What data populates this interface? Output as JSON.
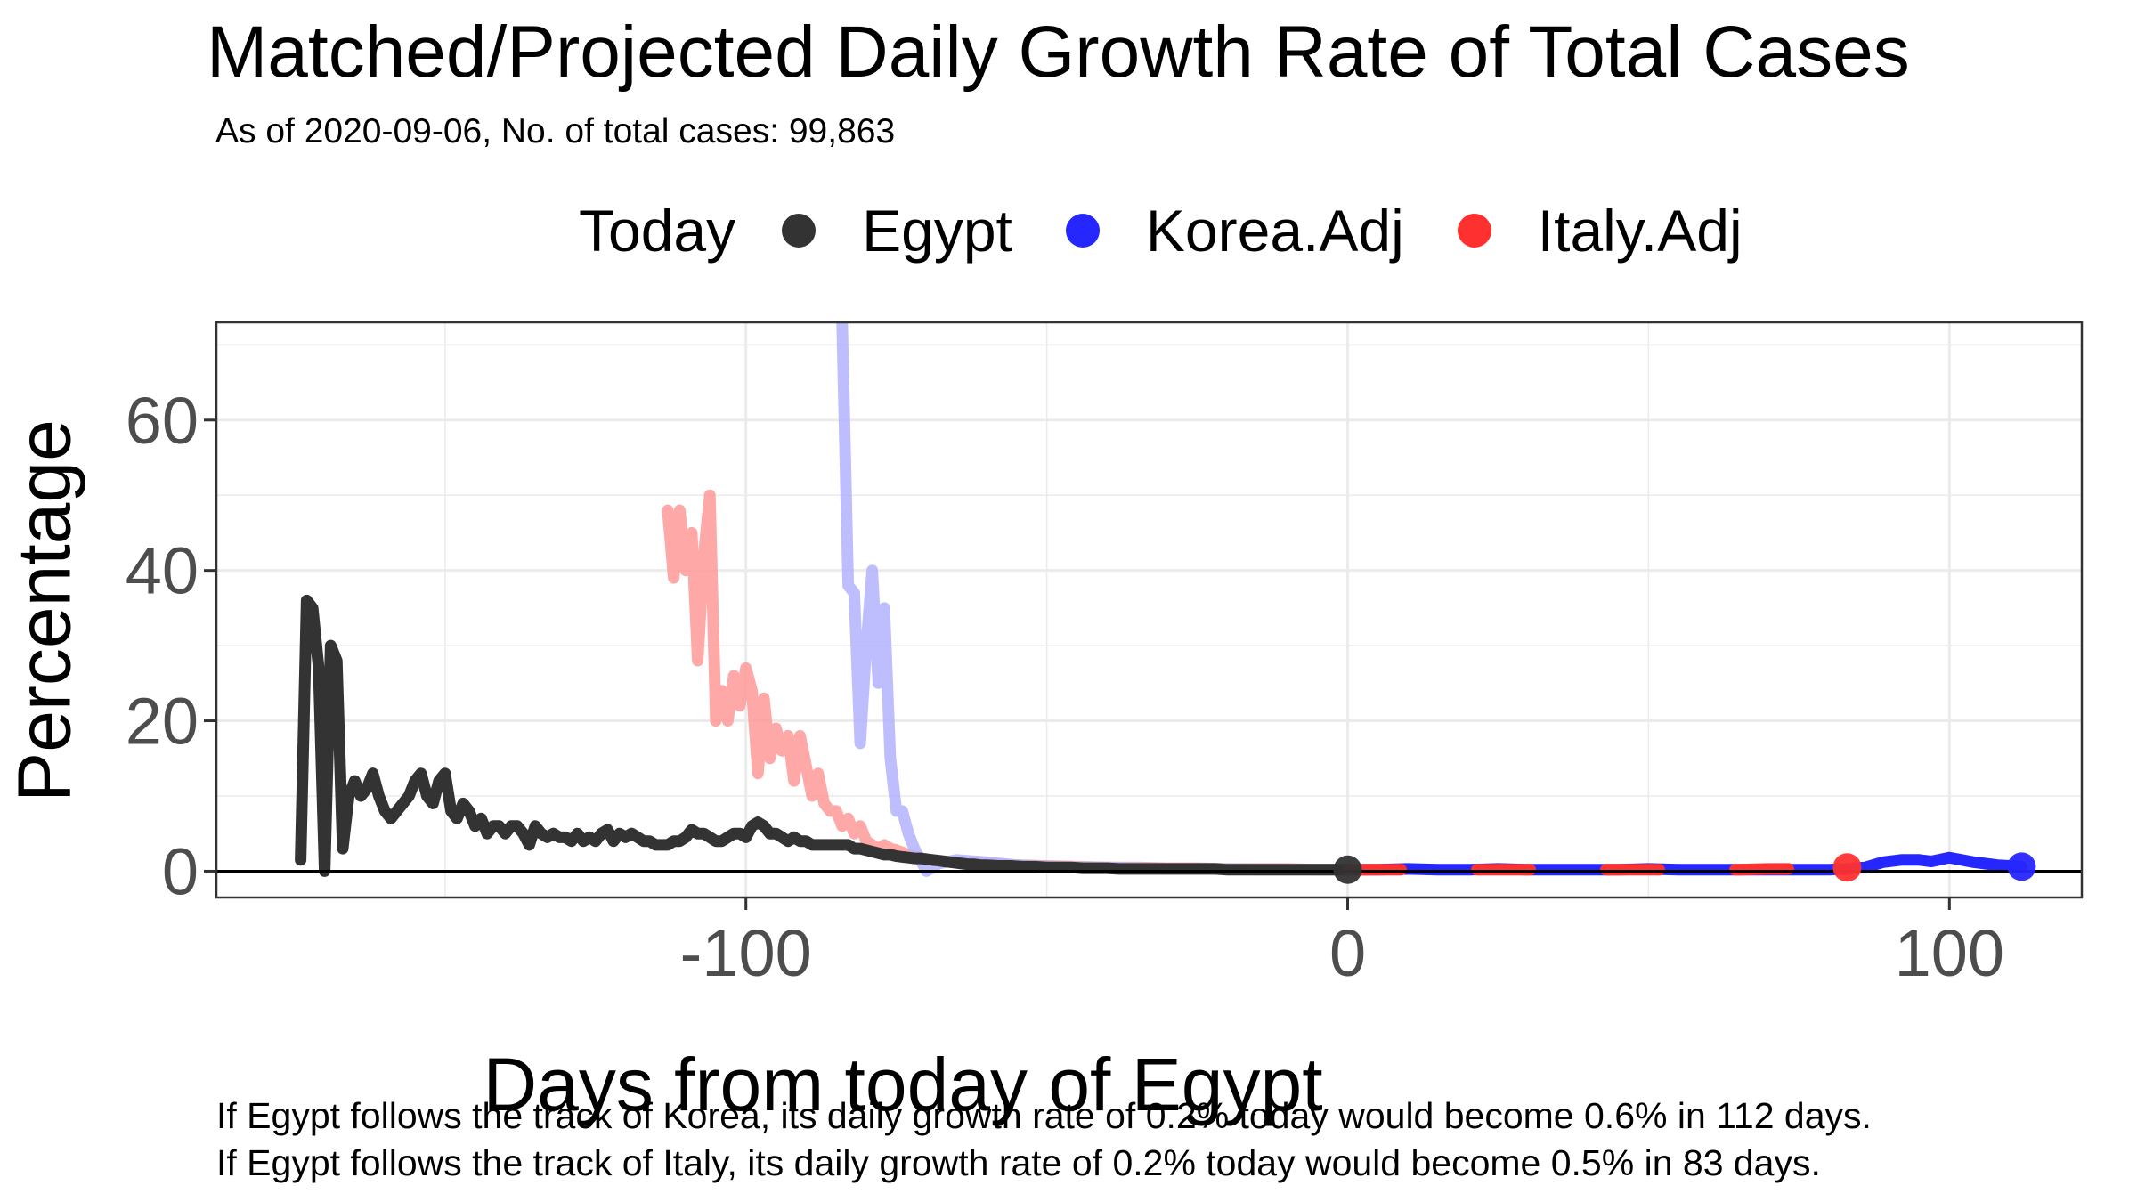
{
  "title": "Matched/Projected Daily Growth Rate of Total Cases",
  "subtitle": "As of 2020-09-06, No. of total cases: 99,863",
  "legend": {
    "title": "Today",
    "items": [
      {
        "label": "Egypt",
        "color": "#333333"
      },
      {
        "label": "Korea.Adj",
        "color": "#2626ff"
      },
      {
        "label": "Italy.Adj",
        "color": "#ff3030"
      }
    ]
  },
  "notes": [
    "If Egypt follows the track of Korea, its daily growth rate of 0.2% today would become 0.6% in 112 days.",
    "If Egypt follows the track of Italy, its daily growth rate of 0.2% today would become 0.5% in 83 days."
  ],
  "chart_data": {
    "type": "line",
    "xlabel": "Days from today of Egypt",
    "ylabel": "Percentage",
    "xlim": [
      -188,
      122
    ],
    "ylim": [
      -3.5,
      73
    ],
    "xticks": [
      -100,
      0,
      100
    ],
    "xtick_labels": [
      "-100",
      "0",
      "100"
    ],
    "yticks": [
      0,
      20,
      40,
      60
    ],
    "ytick_labels": [
      "0",
      "20",
      "40",
      "60"
    ],
    "grid": true,
    "hline": 0,
    "series": [
      {
        "name": "Italy.Adj",
        "color": "#ff9999",
        "role": "matched",
        "x": [
          -113,
          -112,
          -111,
          -110,
          -109,
          -108,
          -107,
          -106,
          -105,
          -104,
          -103,
          -102,
          -101,
          -100,
          -99,
          -98,
          -97,
          -96,
          -95,
          -94,
          -93,
          -92,
          -91,
          -90,
          -89,
          -88,
          -87,
          -86,
          -85,
          -84,
          -83,
          -82,
          -81,
          -80,
          -79,
          -78,
          -77,
          -76,
          -75,
          -74,
          -73,
          -72,
          -71,
          -70,
          -65,
          -60,
          -55,
          -50,
          -45,
          -40,
          -35,
          -30,
          -25,
          -20,
          -15,
          -10,
          -5,
          0
        ],
        "y": [
          48,
          39,
          48,
          40,
          45,
          28,
          42,
          50,
          20,
          24,
          20,
          26,
          22,
          27,
          24,
          13,
          23,
          15,
          19,
          16,
          18,
          12,
          18,
          14,
          10,
          13,
          9,
          8,
          8,
          6,
          7,
          5,
          6,
          4,
          3.5,
          3,
          3.5,
          3,
          2.8,
          2.5,
          2.2,
          2,
          1.8,
          1.5,
          1.2,
          1,
          0.8,
          0.7,
          0.6,
          0.5,
          0.5,
          0.4,
          0.4,
          0.3,
          0.3,
          0.3,
          0.2,
          0.2
        ]
      },
      {
        "name": "Korea.Adj",
        "color": "#b3b3ff",
        "role": "matched",
        "x": [
          -84,
          -83,
          -82,
          -81,
          -80,
          -79,
          -78,
          -77,
          -76,
          -75,
          -74,
          -73,
          -72,
          -71,
          -70,
          -68,
          -65,
          -60,
          -55,
          -50,
          -45,
          -40,
          -35,
          -30,
          -25,
          -20,
          -15,
          -10,
          -5,
          0
        ],
        "y": [
          73,
          38,
          37,
          17,
          30,
          40,
          25,
          35,
          15,
          8,
          8,
          5,
          3,
          1.5,
          0,
          1,
          1.5,
          1.2,
          0.8,
          0.6,
          0.5,
          0.5,
          0.4,
          0.3,
          0.3,
          0.3,
          0.2,
          0.2,
          0.2,
          0.2
        ]
      },
      {
        "name": "Egypt",
        "color": "#333333",
        "role": "observed",
        "x": [
          -174,
          -173,
          -172,
          -171,
          -170,
          -169,
          -168,
          -167,
          -166,
          -165,
          -164,
          -163,
          -162,
          -161,
          -160,
          -159,
          -158,
          -157,
          -156,
          -155,
          -154,
          -153,
          -152,
          -151,
          -150,
          -149,
          -148,
          -147,
          -146,
          -145,
          -144,
          -143,
          -142,
          -141,
          -140,
          -139,
          -138,
          -137,
          -136,
          -135,
          -134,
          -133,
          -132,
          -131,
          -130,
          -129,
          -128,
          -127,
          -126,
          -125,
          -124,
          -123,
          -122,
          -121,
          -120,
          -119,
          -118,
          -117,
          -116,
          -115,
          -114,
          -113,
          -112,
          -111,
          -110,
          -109,
          -108,
          -107,
          -106,
          -105,
          -104,
          -103,
          -102,
          -101,
          -100,
          -99,
          -98,
          -97,
          -96,
          -95,
          -94,
          -93,
          -92,
          -91,
          -90,
          -89,
          -88,
          -87,
          -86,
          -85,
          -84,
          -83,
          -82,
          -81,
          -80,
          -79,
          -78,
          -77,
          -76,
          -75,
          -74,
          -73,
          -72,
          -71,
          -70,
          -69,
          -68,
          -67,
          -66,
          -65,
          -64,
          -63,
          -62,
          -61,
          -60,
          -58,
          -56,
          -54,
          -52,
          -50,
          -48,
          -46,
          -44,
          -42,
          -40,
          -38,
          -36,
          -34,
          -32,
          -30,
          -28,
          -26,
          -24,
          -22,
          -20,
          -18,
          -16,
          -14,
          -12,
          -10,
          -8,
          -6,
          -4,
          -2,
          0
        ],
        "y": [
          1.5,
          36,
          35,
          27,
          0,
          30,
          28,
          3,
          10,
          12,
          10,
          11,
          13,
          10,
          8,
          7,
          8,
          9,
          10,
          12,
          13,
          10,
          9,
          12,
          13,
          8,
          7,
          9,
          8,
          6,
          7,
          5,
          6,
          6,
          5,
          6,
          6,
          5,
          3.5,
          6,
          5,
          4.5,
          5,
          4.5,
          4.5,
          4,
          5,
          4,
          4.5,
          4,
          5,
          5.5,
          4,
          5,
          4.5,
          5,
          4.5,
          4,
          4,
          3.5,
          3.5,
          3.5,
          4,
          4,
          4.5,
          5.5,
          5,
          5,
          4.5,
          4,
          4,
          4.5,
          5,
          5,
          4.5,
          6,
          6.5,
          6,
          5,
          5,
          4.5,
          4,
          4.5,
          4,
          4,
          3.5,
          3.5,
          3.5,
          3.5,
          3.5,
          3.5,
          3.5,
          3,
          3,
          2.8,
          2.6,
          2.4,
          2.2,
          2.2,
          2,
          1.9,
          1.8,
          1.7,
          1.7,
          1.6,
          1.5,
          1.4,
          1.3,
          1.2,
          1.1,
          1,
          0.9,
          0.9,
          0.8,
          0.8,
          0.7,
          0.7,
          0.6,
          0.6,
          0.5,
          0.5,
          0.5,
          0.4,
          0.4,
          0.4,
          0.3,
          0.3,
          0.3,
          0.3,
          0.3,
          0.3,
          0.3,
          0.3,
          0.3,
          0.2,
          0.2,
          0.2,
          0.2,
          0.2,
          0.2,
          0.2,
          0.2,
          0.2,
          0.2,
          0.2
        ]
      },
      {
        "name": "Korea.Adj",
        "color": "#2626ff",
        "role": "projected",
        "x": [
          0,
          5,
          10,
          15,
          20,
          25,
          30,
          35,
          40,
          45,
          50,
          55,
          60,
          65,
          70,
          75,
          80,
          83,
          86,
          89,
          92,
          95,
          97,
          100,
          102,
          104,
          106,
          108,
          110,
          112
        ],
        "y": [
          0.2,
          0.2,
          0.3,
          0.2,
          0.2,
          0.3,
          0.2,
          0.2,
          0.2,
          0.2,
          0.3,
          0.2,
          0.2,
          0.2,
          0.2,
          0.2,
          0.2,
          0.3,
          0.5,
          1.2,
          1.5,
          1.5,
          1.3,
          1.8,
          1.5,
          1.2,
          1,
          0.8,
          0.7,
          0.6
        ]
      },
      {
        "name": "Italy.Adj",
        "color": "#ff3030",
        "role": "projected",
        "x": [
          0,
          5,
          10,
          15,
          20,
          25,
          30,
          35,
          40,
          45,
          50,
          55,
          60,
          65,
          70,
          75,
          80,
          83
        ],
        "y": [
          0.2,
          0.2,
          0.2,
          0.2,
          0.2,
          0.2,
          0.2,
          0.2,
          0.2,
          0.2,
          0.2,
          0.2,
          0.2,
          0.2,
          0.3,
          0.3,
          0.4,
          0.5
        ]
      }
    ],
    "points": [
      {
        "name": "Egypt",
        "x": 0,
        "y": 0.2,
        "color": "#333333"
      },
      {
        "name": "Italy.Adj",
        "x": 83,
        "y": 0.5,
        "color": "#ff3030"
      },
      {
        "name": "Korea.Adj",
        "x": 112,
        "y": 0.6,
        "color": "#2626ff"
      }
    ]
  }
}
